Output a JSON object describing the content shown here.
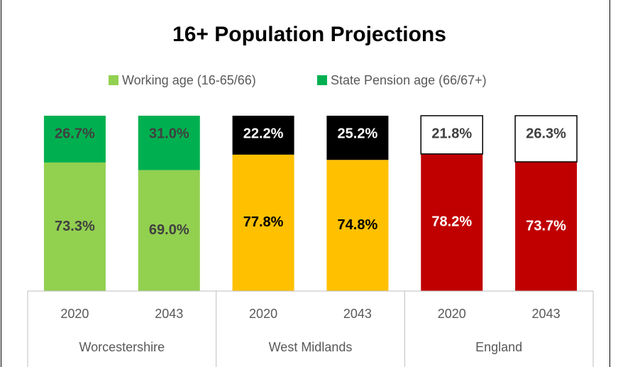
{
  "chart_data": {
    "type": "stacked_bar",
    "title": "16+ Population Projections",
    "categories": [
      "2020",
      "2043",
      "2020",
      "2043",
      "2020",
      "2043"
    ],
    "groups": [
      "Worcestershire",
      "West Midlands",
      "England"
    ],
    "ylim": [
      0,
      100
    ],
    "series": [
      {
        "name": "Working age (16-65/66)",
        "color": "#92d050",
        "colors": [
          "#92d050",
          "#92d050",
          "#ffc000",
          "#ffc000",
          "#c00000",
          "#c00000"
        ],
        "label_colors": [
          "#404040",
          "#404040",
          "#000000",
          "#000000",
          "#ffffff",
          "#ffffff"
        ],
        "values": [
          73.3,
          69.0,
          77.8,
          74.8,
          78.2,
          73.7
        ],
        "value_labels": [
          "73.3%",
          "69.0%",
          "77.8%",
          "74.8%",
          "78.2%",
          "73.7%"
        ]
      },
      {
        "name": "State Pension age (66/67+)",
        "color": "#00b050",
        "colors": [
          "#00b050",
          "#00b050",
          "#000000",
          "#000000",
          "#ffffff",
          "#ffffff"
        ],
        "label_colors": [
          "#404040",
          "#404040",
          "#ffffff",
          "#ffffff",
          "#404040",
          "#404040"
        ],
        "values": [
          26.7,
          31.0,
          22.2,
          25.2,
          21.8,
          26.3
        ],
        "value_labels": [
          "26.7%",
          "31.0%",
          "22.2%",
          "25.2%",
          "21.8%",
          "26.3%"
        ]
      }
    ]
  }
}
